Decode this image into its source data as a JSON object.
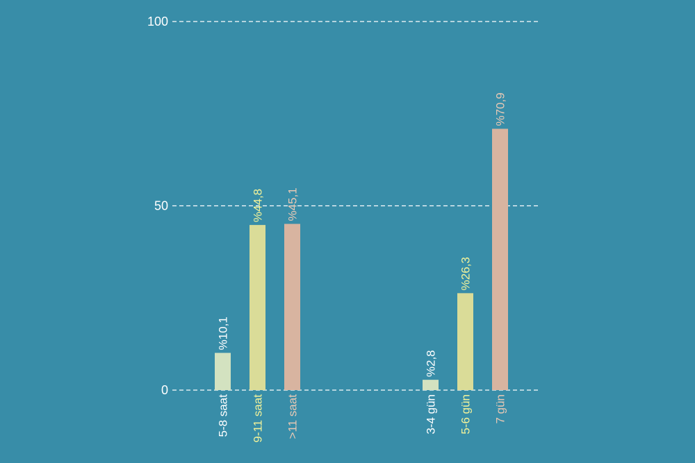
{
  "chart_data": {
    "type": "bar",
    "ylim": [
      0,
      100
    ],
    "yticks": [
      {
        "value": 0,
        "label": "0"
      },
      {
        "value": 50,
        "label": "50"
      },
      {
        "value": 100,
        "label": "100"
      }
    ],
    "grid": true,
    "groups": [
      {
        "bars": [
          {
            "category": "5-8 saat",
            "value": 10.1,
            "label": "%10,1",
            "color": "#d3e2c0",
            "text_color": "#ffffff"
          },
          {
            "category": "9-11 saat",
            "value": 44.8,
            "label": "%44,8",
            "color": "#dadc98",
            "text_color": "#f3f39a"
          },
          {
            "category": ">11 saat",
            "value": 45.1,
            "label": "%45,1",
            "color": "#d8b4a0",
            "text_color": "#e8c9b5"
          }
        ]
      },
      {
        "bars": [
          {
            "category": "3-4 gün",
            "value": 2.8,
            "label": "%2,8",
            "color": "#d3e2c0",
            "text_color": "#ffffff"
          },
          {
            "category": "5-6 gün",
            "value": 26.3,
            "label": "%26,3",
            "color": "#dadc98",
            "text_color": "#f3f39a"
          },
          {
            "category": "7 gün",
            "value": 70.9,
            "label": "%70,9",
            "color": "#d8b4a0",
            "text_color": "#e8c9b5"
          }
        ]
      }
    ]
  }
}
